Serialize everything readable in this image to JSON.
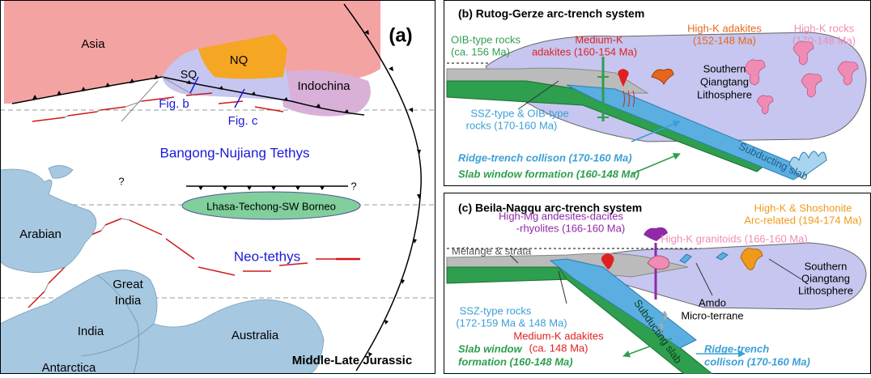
{
  "panel_a": {
    "label": "(a)",
    "age": "Middle-Late Jurassic",
    "regions": {
      "asia": "Asia",
      "sq": "SQ",
      "nq": "NQ",
      "indochina": "Indochina",
      "lhasa": "Lhasa-Techong-SW Borneo",
      "arabian": "Arabian",
      "great_india": [
        "Great",
        "India"
      ],
      "india": "India",
      "australia": "Australia",
      "antarctica": "Antarctica"
    },
    "oceans": [
      "Bangong-Nujiang Tethys",
      "Neo-tethys"
    ],
    "figure_refs": [
      "Fig. b",
      "Fig. c"
    ],
    "unknowns": [
      "?",
      "?"
    ]
  },
  "panel_b": {
    "title": "(b) Rutog-Gerze arc-trench system",
    "oib": [
      "OIB-type rocks",
      "(ca. 156 Ma)"
    ],
    "medium_k": [
      "Medium-K",
      "adakites (160-154 Ma)"
    ],
    "high_k_adakites": [
      "High-K adakites",
      "(152-148 Ma)"
    ],
    "high_k_rocks": [
      "High-K rocks",
      "(170-148 Ma)"
    ],
    "lithosphere": [
      "Southern",
      "Qiangtang",
      "Lithosphere"
    ],
    "ssz": [
      "SSZ-type & OIB-type",
      "rocks (170-160 Ma)"
    ],
    "ridge_trench": "Ridge-trench collison (170-160 Ma)",
    "slab_window": "Slab window formation (160-148 Ma)",
    "slab": "Subducting slab"
  },
  "panel_c": {
    "title": "(c) Beila-Nagqu arc-trench system",
    "high_mg": [
      "High-Mg andesites-dacites",
      "-rhyolites (166-160 Ma)"
    ],
    "shoshonite": [
      "High-K & Shoshonite",
      "Arc-related (194-174 Ma)"
    ],
    "granitoids": "High-K granitoids (166-160 Ma)",
    "melange": "Mélange & strata",
    "lithosphere": [
      "Southern",
      "Qiangtang",
      "Lithosphere"
    ],
    "amdo": [
      "Amdo",
      "Micro-terrane"
    ],
    "ssz": [
      "SSZ-type rocks",
      "(172-159 Ma & 148 Ma)"
    ],
    "medium_k": [
      "Medium-K adakites",
      "(ca. 148 Ma)"
    ],
    "slab": "Subducting slab",
    "slab_window": [
      "Slab window",
      "formation (160-148 Ma)"
    ],
    "ridge_trench": [
      "Ridge-trench",
      "collison (170-160 Ma)"
    ]
  }
}
